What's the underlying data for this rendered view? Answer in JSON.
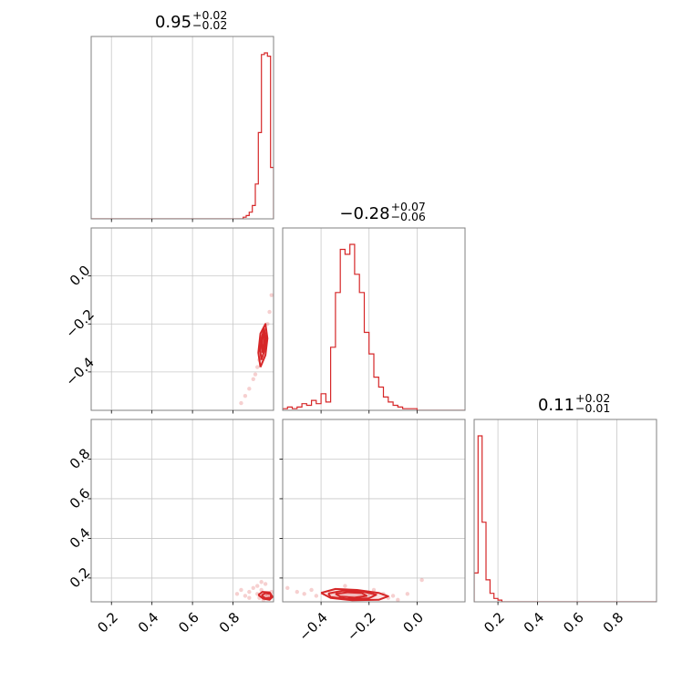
{
  "figure": {
    "type": "corner_plot",
    "accent_color": "#d62728",
    "grid_color": "#c8c8c8",
    "spine_color": "#808080"
  },
  "chart_data": [
    {
      "type": "bar",
      "panel": "hist-param-1",
      "title": {
        "value": "0.95",
        "plus": "+0.02",
        "minus": "−0.02"
      },
      "xlim": [
        0.1,
        1.0
      ],
      "xticks": [
        0.2,
        0.4,
        0.6,
        0.8
      ],
      "bin_edges": [
        0.85,
        0.865,
        0.88,
        0.895,
        0.91,
        0.925,
        0.94,
        0.955,
        0.97,
        0.985,
        1.0
      ],
      "values": [
        0.01,
        0.02,
        0.04,
        0.08,
        0.21,
        0.52,
        0.99,
        1.0,
        0.98,
        0.31
      ]
    },
    {
      "type": "bar",
      "panel": "hist-param-2",
      "title": {
        "value": "−0.28",
        "plus": "+0.07",
        "minus": "−0.06"
      },
      "xlim": [
        -0.56,
        0.2
      ],
      "xticks": [
        -0.4,
        -0.2,
        0.0
      ],
      "bin_edges": [
        -0.56,
        -0.54,
        -0.52,
        -0.5,
        -0.48,
        -0.46,
        -0.44,
        -0.42,
        -0.4,
        -0.38,
        -0.36,
        -0.34,
        -0.32,
        -0.3,
        -0.28,
        -0.26,
        -0.24,
        -0.22,
        -0.2,
        -0.18,
        -0.16,
        -0.14,
        -0.12,
        -0.1,
        -0.08,
        -0.06,
        -0.04,
        -0.02,
        0.0,
        0.02,
        0.04,
        0.06,
        0.08,
        0.1,
        0.12,
        0.14,
        0.16,
        0.18,
        0.2
      ],
      "values": [
        0.01,
        0.02,
        0.01,
        0.02,
        0.04,
        0.03,
        0.06,
        0.04,
        0.1,
        0.05,
        0.38,
        0.71,
        0.97,
        0.94,
        1.0,
        0.82,
        0.71,
        0.47,
        0.34,
        0.2,
        0.14,
        0.08,
        0.05,
        0.03,
        0.02,
        0.01,
        0.01,
        0.01,
        0.0,
        0.0,
        0.0,
        0.0,
        0.0,
        0.0,
        0.0,
        0.0,
        0.0,
        0.0
      ]
    },
    {
      "type": "bar",
      "panel": "hist-param-3",
      "title": {
        "value": "0.11",
        "plus": "+0.02",
        "minus": "−0.01"
      },
      "xlim": [
        0.08,
        1.0
      ],
      "xticks": [
        0.2,
        0.4,
        0.6,
        0.8
      ],
      "bin_edges": [
        0.08,
        0.1,
        0.12,
        0.14,
        0.16,
        0.18,
        0.2,
        0.22,
        0.24,
        0.26,
        0.28,
        0.3
      ],
      "values": [
        0.17,
        0.98,
        0.47,
        0.13,
        0.05,
        0.02,
        0.01,
        0.0,
        0.0,
        0.0,
        0.0
      ]
    },
    {
      "type": "scatter",
      "panel": "2d-param-1-vs-param-2",
      "xlim": [
        0.1,
        1.0
      ],
      "ylim": [
        -0.56,
        0.2
      ],
      "xticks": [],
      "yticks": [
        0.0,
        -0.2,
        -0.4
      ],
      "ytick_labels": [
        "0.0",
        "−0.2",
        "−0.4"
      ],
      "density_x": [
        0.84,
        0.86,
        0.88,
        0.9,
        0.91,
        0.92,
        0.93,
        0.94,
        0.95,
        0.96,
        0.97,
        0.98,
        0.99
      ],
      "density_y": [
        -0.53,
        -0.5,
        -0.47,
        -0.43,
        -0.41,
        -0.38,
        -0.35,
        -0.31,
        -0.28,
        -0.25,
        -0.2,
        -0.15,
        -0.08
      ],
      "contours": [
        {
          "x": [
            0.935,
            0.96,
            0.97,
            0.96,
            0.935,
            0.925,
            0.935
          ],
          "y": [
            -0.38,
            -0.33,
            -0.26,
            -0.2,
            -0.24,
            -0.32,
            -0.38
          ]
        },
        {
          "x": [
            0.94,
            0.955,
            0.962,
            0.953,
            0.94,
            0.934,
            0.94
          ],
          "y": [
            -0.35,
            -0.31,
            -0.26,
            -0.22,
            -0.26,
            -0.31,
            -0.35
          ]
        },
        {
          "x": [
            0.945,
            0.952,
            0.956,
            0.95,
            0.943,
            0.945
          ],
          "y": [
            -0.32,
            -0.29,
            -0.26,
            -0.24,
            -0.28,
            -0.32
          ]
        }
      ]
    },
    {
      "type": "scatter",
      "panel": "2d-param-1-vs-param-3",
      "xlim": [
        0.1,
        1.0
      ],
      "ylim": [
        0.08,
        1.0
      ],
      "xticks": [
        0.2,
        0.4,
        0.6,
        0.8
      ],
      "yticks": [
        0.8,
        0.6,
        0.4,
        0.2
      ],
      "xlabel": "",
      "ylabel": "",
      "density_x": [
        0.82,
        0.84,
        0.86,
        0.88,
        0.9,
        0.92,
        0.93,
        0.94,
        0.95,
        0.96,
        0.97,
        0.98,
        0.99,
        0.96,
        0.94,
        0.92,
        0.88
      ],
      "density_y": [
        0.12,
        0.14,
        0.11,
        0.13,
        0.15,
        0.12,
        0.1,
        0.14,
        0.09,
        0.12,
        0.11,
        0.1,
        0.13,
        0.17,
        0.18,
        0.16,
        0.1
      ],
      "contours": [
        {
          "x": [
            0.925,
            0.95,
            0.98,
            0.995,
            0.98,
            0.945,
            0.925
          ],
          "y": [
            0.115,
            0.095,
            0.09,
            0.105,
            0.128,
            0.13,
            0.115
          ]
        },
        {
          "x": [
            0.94,
            0.96,
            0.985,
            0.988,
            0.96,
            0.94
          ],
          "y": [
            0.112,
            0.098,
            0.1,
            0.118,
            0.124,
            0.112
          ]
        }
      ]
    },
    {
      "type": "scatter",
      "panel": "2d-param-2-vs-param-3",
      "xlim": [
        -0.56,
        0.2
      ],
      "ylim": [
        0.08,
        1.0
      ],
      "xticks": [
        -0.4,
        -0.2,
        0.0
      ],
      "xtick_labels": [
        "−0.4",
        "−0.2",
        "0.0"
      ],
      "yticks": [],
      "density_x": [
        -0.54,
        -0.5,
        -0.47,
        -0.44,
        -0.42,
        -0.3,
        -0.18,
        -0.14,
        -0.12,
        -0.1,
        -0.08,
        -0.04,
        0.02
      ],
      "density_y": [
        0.15,
        0.13,
        0.12,
        0.14,
        0.11,
        0.16,
        0.14,
        0.12,
        0.1,
        0.11,
        0.09,
        0.12,
        0.19
      ],
      "contours": [
        {
          "x": [
            -0.4,
            -0.34,
            -0.25,
            -0.16,
            -0.12,
            -0.16,
            -0.27,
            -0.36,
            -0.4
          ],
          "y": [
            0.125,
            0.145,
            0.14,
            0.125,
            0.108,
            0.09,
            0.088,
            0.1,
            0.125
          ]
        },
        {
          "x": [
            -0.37,
            -0.31,
            -0.23,
            -0.17,
            -0.2,
            -0.29,
            -0.36,
            -0.37
          ],
          "y": [
            0.122,
            0.136,
            0.132,
            0.116,
            0.098,
            0.094,
            0.104,
            0.122
          ]
        },
        {
          "x": [
            -0.34,
            -0.29,
            -0.23,
            -0.21,
            -0.26,
            -0.32,
            -0.34
          ],
          "y": [
            0.12,
            0.128,
            0.124,
            0.11,
            0.101,
            0.106,
            0.12
          ]
        }
      ]
    }
  ]
}
